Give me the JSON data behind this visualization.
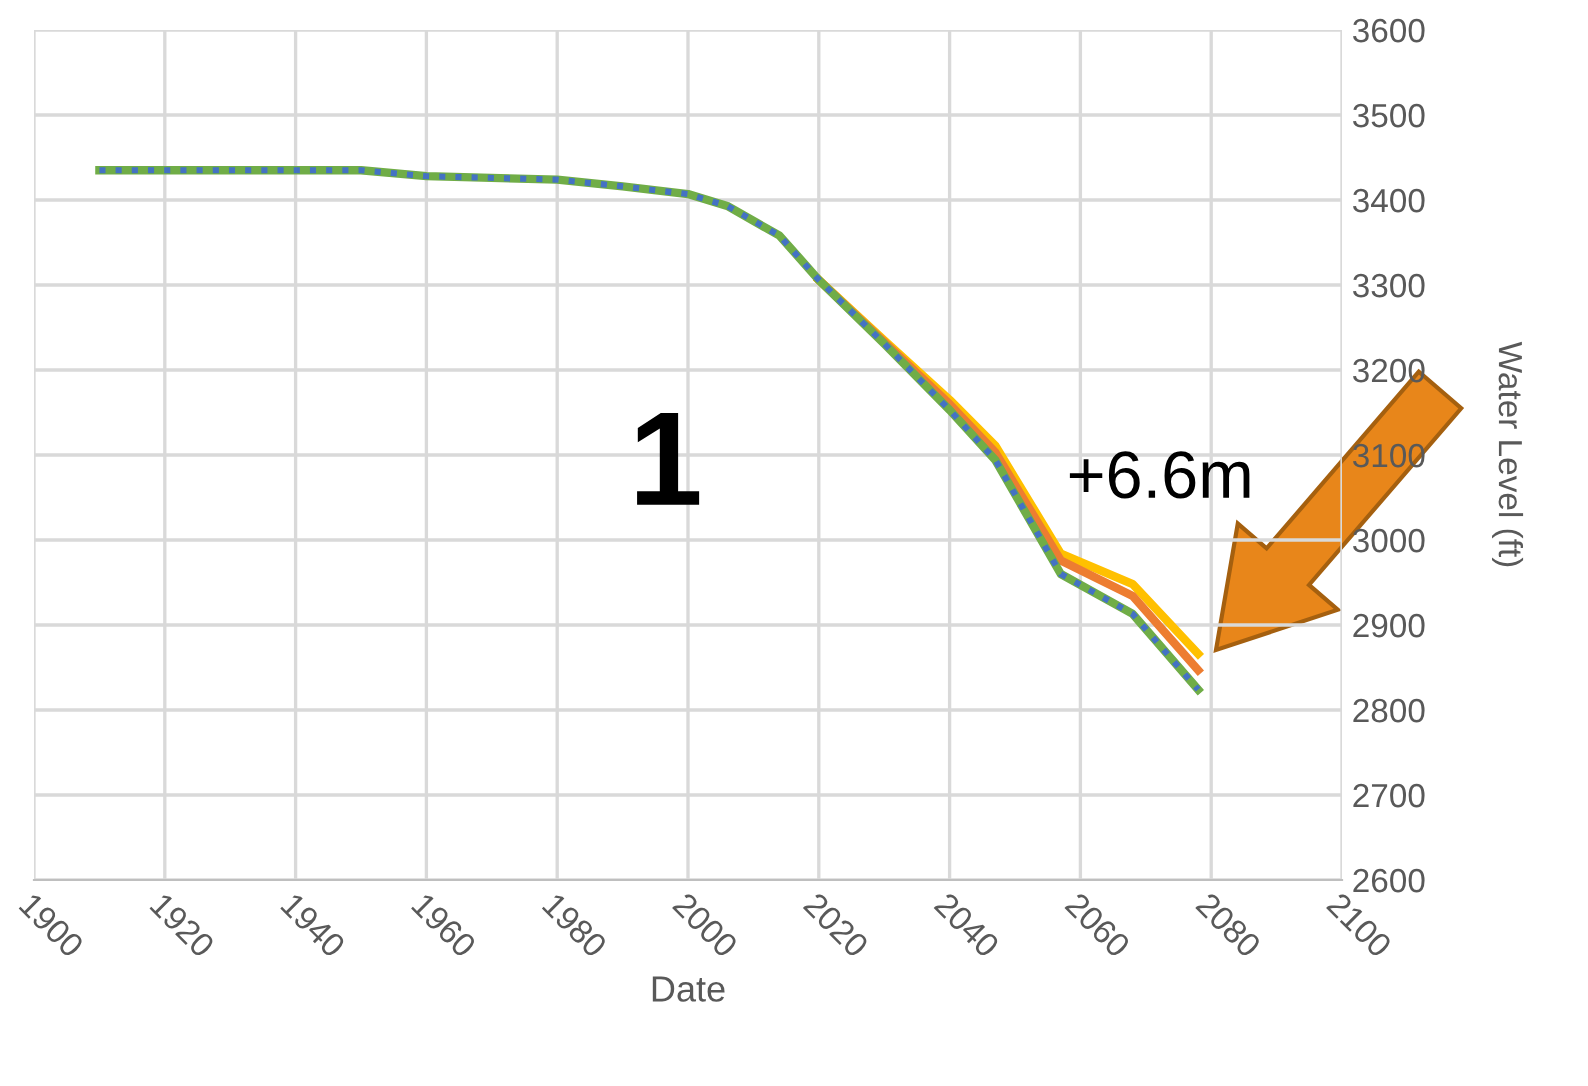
{
  "chart_data": {
    "type": "line",
    "xlabel": "Date",
    "ylabel": "Water Level (ft)",
    "x": [
      1910,
      1950,
      1960,
      1980,
      1990,
      2000,
      2006,
      2014,
      2020,
      2030,
      2040,
      2047,
      2057,
      2068,
      2078
    ],
    "series": [
      {
        "color": "#ffc000",
        "line_style": "solid",
        "values": [
          null,
          null,
          null,
          null,
          null,
          null,
          null,
          null,
          3306,
          3235,
          3165,
          3111,
          2984,
          2948,
          2866
        ]
      },
      {
        "color": "#ed7d31",
        "line_style": "solid",
        "values": [
          null,
          null,
          null,
          null,
          null,
          null,
          null,
          null,
          3306,
          3233,
          3160,
          3103,
          2976,
          2934,
          2847
        ]
      },
      {
        "color": "#70ad47",
        "line_style": "solid",
        "values": [
          3435,
          3435,
          3428,
          3424,
          3416,
          3407,
          3393,
          3358,
          3306,
          3231,
          3153,
          3094,
          2960,
          2913,
          2824
        ]
      },
      {
        "color": "#4472c4",
        "line_style": "dotted",
        "values": [
          3435,
          3435,
          3428,
          3424,
          3416,
          3407,
          3393,
          3358,
          3306,
          3231,
          3153,
          3094,
          2960,
          2913,
          2824
        ]
      }
    ],
    "xlim": [
      1900,
      2100
    ],
    "xticks": [
      1900,
      1920,
      1940,
      1960,
      1980,
      2000,
      2020,
      2040,
      2060,
      2080,
      2100
    ],
    "ylim": [
      2600,
      3600
    ],
    "yticks": [
      2600,
      2700,
      2800,
      2900,
      3000,
      3100,
      3200,
      3300,
      3400,
      3500,
      3600
    ],
    "grid": true,
    "marker": "none",
    "legend": false,
    "annotations": [
      "1",
      "+6.6m"
    ]
  }
}
